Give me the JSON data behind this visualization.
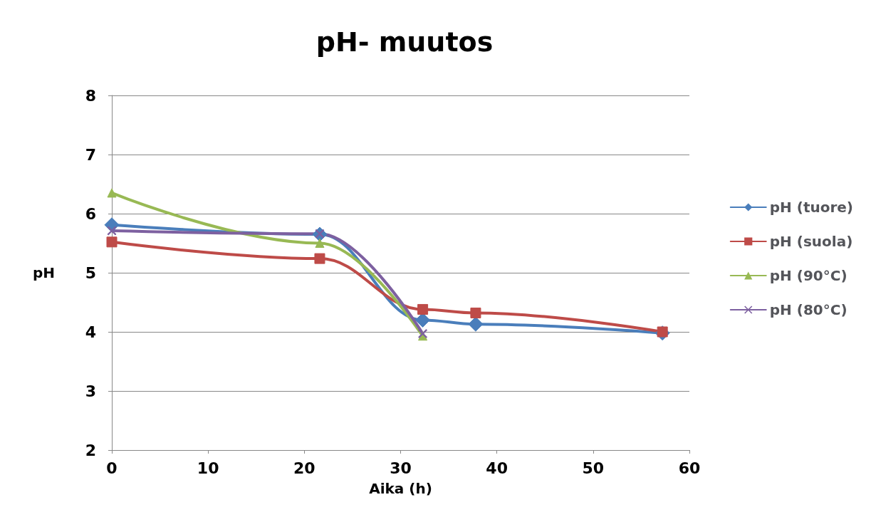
{
  "chart_data": {
    "type": "line",
    "title": "pH- muutos",
    "xlabel": "Aika (h)",
    "ylabel": "pH",
    "xlim": [
      0,
      60
    ],
    "xticks": [
      0,
      10,
      20,
      30,
      40,
      50,
      60
    ],
    "ylim": [
      2,
      8
    ],
    "yticks": [
      2,
      3,
      4,
      5,
      6,
      7,
      8
    ],
    "grid": "y",
    "legend": "right",
    "series": [
      {
        "name": "pH (tuore)",
        "color": "#4a7ebb",
        "marker": "diamond",
        "x": [
          0,
          21.6,
          32.3,
          37.8,
          57.2
        ],
        "values": [
          5.81,
          5.65,
          4.2,
          4.13,
          3.98
        ]
      },
      {
        "name": "pH (suola)",
        "color": "#be4b48",
        "marker": "square",
        "x": [
          0,
          21.6,
          32.3,
          37.8,
          57.2
        ],
        "values": [
          5.52,
          5.24,
          4.38,
          4.32,
          4.0
        ]
      },
      {
        "name": "pH (90°C)",
        "color": "#98b954",
        "marker": "triangle",
        "x": [
          0,
          21.6,
          32.3
        ],
        "values": [
          6.35,
          5.5,
          3.93
        ]
      },
      {
        "name": "pH (80°C)",
        "color": "#7d60a0",
        "marker": "cross",
        "x": [
          0,
          21.6,
          32.3
        ],
        "values": [
          5.71,
          5.66,
          3.97
        ]
      }
    ]
  }
}
